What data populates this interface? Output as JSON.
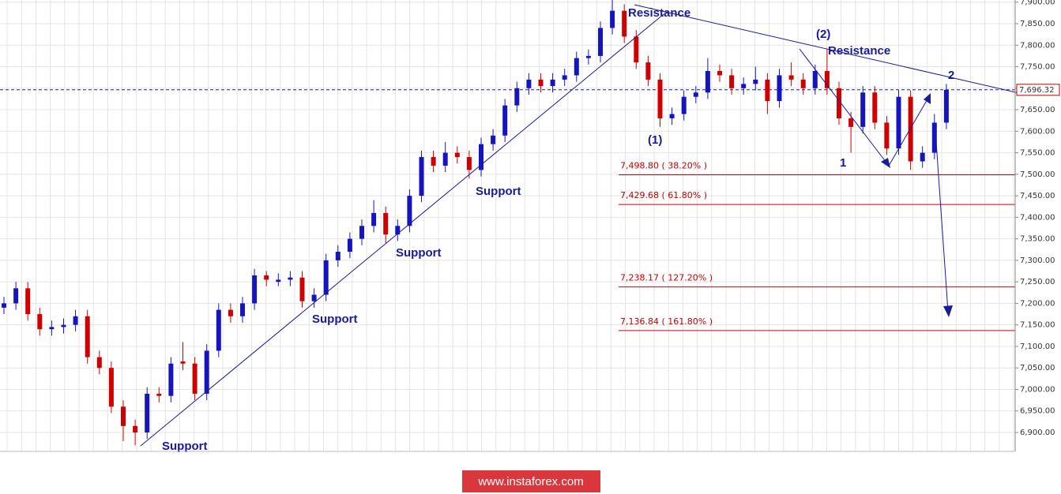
{
  "chart_data": {
    "type": "candlestick",
    "ylim": [
      6856,
      7905
    ],
    "yticks": [
      {
        "value": 6900,
        "label": "6,900.00"
      },
      {
        "value": 6950,
        "label": "6,950.00"
      },
      {
        "value": 7000,
        "label": "7,000.00"
      },
      {
        "value": 7050,
        "label": "7,050.00"
      },
      {
        "value": 7100,
        "label": "7,100.00"
      },
      {
        "value": 7150,
        "label": "7,150.00"
      },
      {
        "value": 7200,
        "label": "7,200.00"
      },
      {
        "value": 7250,
        "label": "7,250.00"
      },
      {
        "value": 7300,
        "label": "7,300.00"
      },
      {
        "value": 7350,
        "label": "7,350.00"
      },
      {
        "value": 7400,
        "label": "7,400.00"
      },
      {
        "value": 7450,
        "label": "7,450.00"
      },
      {
        "value": 7500,
        "label": "7,500.00"
      },
      {
        "value": 7550,
        "label": "7,550.00"
      },
      {
        "value": 7600,
        "label": "7,600.00"
      },
      {
        "value": 7650,
        "label": "7,650.00"
      },
      {
        "value": 7700,
        "label": "7,700.00"
      },
      {
        "value": 7750,
        "label": "7,750.00"
      },
      {
        "value": 7800,
        "label": "7,800.00"
      },
      {
        "value": 7850,
        "label": "7,850.00"
      },
      {
        "value": 7900,
        "label": "7,900.00"
      }
    ],
    "grid": true,
    "up_color": "#1515c0",
    "down_color": "#d00000",
    "open": [
      7190,
      7200,
      7235,
      7175,
      7140,
      7145,
      7150,
      7170,
      7075,
      7050,
      6960,
      6915,
      6900,
      6990,
      6985,
      7065,
      7060,
      6990,
      7090,
      7185,
      7170,
      7200,
      7265,
      7250,
      7255,
      7260,
      7205,
      7220,
      7300,
      7320,
      7350,
      7380,
      7410,
      7360,
      7380,
      7450,
      7540,
      7520,
      7550,
      7540,
      7510,
      7570,
      7590,
      7660,
      7700,
      7720,
      7705,
      7720,
      7730,
      7770,
      7775,
      7840,
      7880,
      7820,
      7760,
      7720,
      7630,
      7640,
      7680,
      7690,
      7740,
      7730,
      7700,
      7710,
      7720,
      7670,
      7730,
      7720,
      7700,
      7740,
      7700,
      7630,
      7610,
      7690,
      7620,
      7560,
      7680,
      7530,
      7550,
      7620
    ],
    "high": [
      7215,
      7250,
      7250,
      7190,
      7160,
      7165,
      7185,
      7185,
      7090,
      7065,
      6975,
      6930,
      7005,
      7005,
      7075,
      7110,
      7075,
      7105,
      7200,
      7200,
      7215,
      7280,
      7275,
      7270,
      7275,
      7275,
      7235,
      7315,
      7335,
      7365,
      7395,
      7440,
      7425,
      7395,
      7465,
      7555,
      7555,
      7575,
      7565,
      7555,
      7585,
      7605,
      7675,
      7715,
      7735,
      7735,
      7735,
      7745,
      7785,
      7790,
      7855,
      7905,
      7895,
      7835,
      7775,
      7735,
      7655,
      7695,
      7705,
      7770,
      7755,
      7745,
      7725,
      7750,
      7735,
      7745,
      7760,
      7735,
      7755,
      7790,
      7715,
      7645,
      7705,
      7705,
      7635,
      7695,
      7695,
      7565,
      7640,
      7710
    ],
    "low": [
      7175,
      7185,
      7160,
      7125,
      7125,
      7130,
      7135,
      7060,
      7035,
      6945,
      6880,
      6870,
      6885,
      6970,
      6970,
      7045,
      6975,
      6975,
      7075,
      7155,
      7155,
      7185,
      7240,
      7240,
      7240,
      7190,
      7190,
      7205,
      7285,
      7305,
      7335,
      7365,
      7340,
      7345,
      7365,
      7435,
      7505,
      7505,
      7525,
      7490,
      7495,
      7555,
      7575,
      7645,
      7685,
      7690,
      7690,
      7705,
      7715,
      7755,
      7760,
      7825,
      7805,
      7745,
      7705,
      7610,
      7615,
      7625,
      7665,
      7675,
      7715,
      7685,
      7685,
      7695,
      7640,
      7655,
      7705,
      7685,
      7685,
      7685,
      7615,
      7550,
      7595,
      7605,
      7545,
      7545,
      7510,
      7515,
      7535,
      7605
    ],
    "close": [
      7200,
      7235,
      7175,
      7140,
      7145,
      7150,
      7170,
      7075,
      7050,
      6960,
      6915,
      6900,
      6990,
      6985,
      7060,
      7060,
      6990,
      7090,
      7185,
      7170,
      7200,
      7265,
      7255,
      7255,
      7260,
      7205,
      7220,
      7300,
      7320,
      7350,
      7380,
      7410,
      7360,
      7380,
      7450,
      7540,
      7520,
      7550,
      7540,
      7510,
      7570,
      7590,
      7660,
      7700,
      7720,
      7705,
      7720,
      7730,
      7770,
      7775,
      7840,
      7880,
      7820,
      7760,
      7720,
      7630,
      7640,
      7680,
      7690,
      7740,
      7730,
      7700,
      7710,
      7720,
      7670,
      7730,
      7720,
      7700,
      7740,
      7700,
      7630,
      7610,
      7690,
      7620,
      7560,
      7680,
      7530,
      7550,
      7620,
      7696.32
    ],
    "last_price": {
      "value": 7696.32,
      "label": "7,696.32"
    },
    "levels": [
      {
        "value": 7498.8,
        "label": "7,498.80 ( 38.20% )"
      },
      {
        "value": 7429.68,
        "label": "7,429.68 ( 61.80% )"
      },
      {
        "value": 7238.17,
        "label": "7,238.17 ( 127.20% )"
      },
      {
        "value": 7136.84,
        "label": "7,136.84 ( 161.80% )"
      }
    ],
    "annotations": [
      "Resistance",
      "Resistance",
      "(2)",
      "2",
      "(1)",
      "1",
      "Support",
      "Support",
      "Support",
      "Support"
    ]
  },
  "watermark": "www.instaforex.com"
}
